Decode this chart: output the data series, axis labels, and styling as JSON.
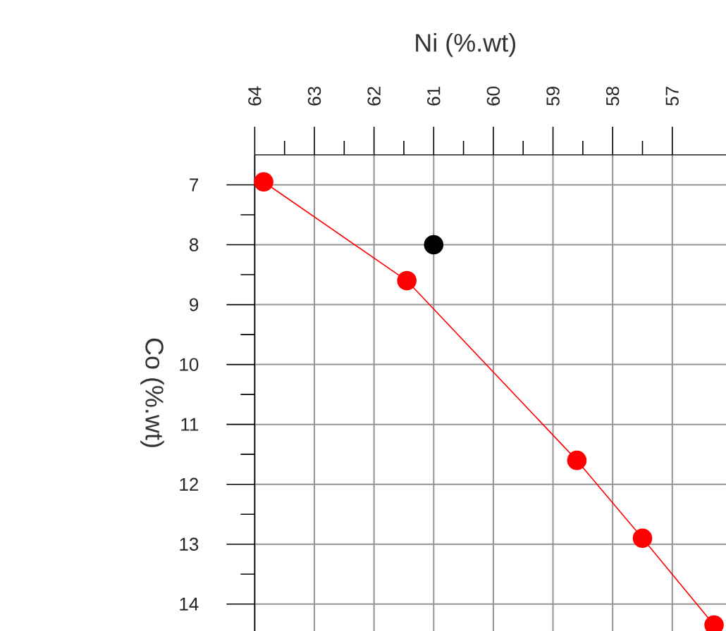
{
  "chart_data": {
    "type": "line",
    "xlabel": "Ni (%.wt)",
    "ylabel": "Co (%.wt)",
    "series": [
      {
        "color": "#ff0000",
        "x": [
          63.85,
          61.45,
          58.6,
          57.5,
          56.3
        ],
        "values": [
          6.95,
          8.6,
          11.6,
          12.9,
          14.35
        ]
      },
      {
        "type": "scatter",
        "color": "#000000",
        "x": [
          61
        ],
        "values": [
          8
        ]
      }
    ],
    "xlim": [
      64,
      56.1
    ],
    "ylim": [
      14.45,
      6.5
    ],
    "xticks": [
      64,
      63,
      62,
      61,
      60,
      59,
      58,
      57
    ],
    "yticks": [
      7,
      8,
      9,
      10,
      11,
      12,
      13,
      14
    ],
    "grid": true,
    "marker": "circle"
  }
}
